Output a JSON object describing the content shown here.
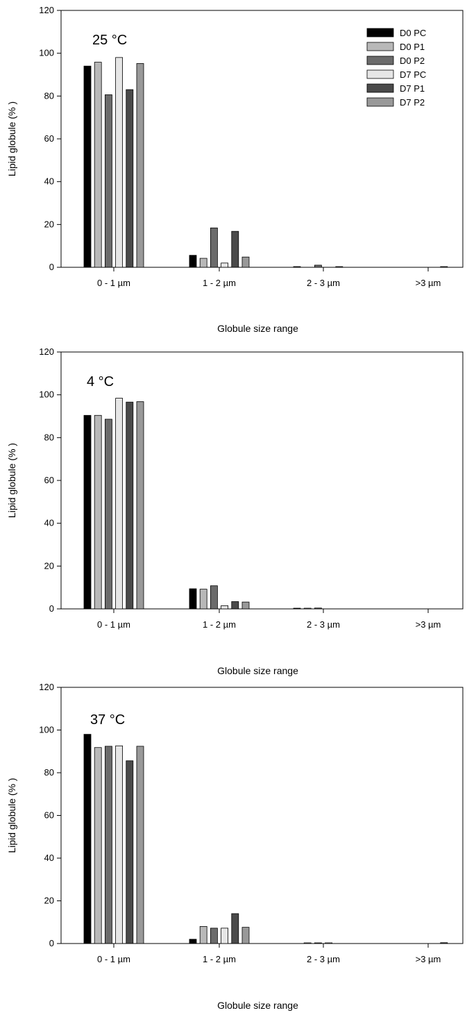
{
  "chart_data": [
    {
      "type": "bar",
      "title": "25 °C",
      "xlabel": "Globule size range",
      "ylabel": "Lipid globule (% )",
      "ylim": [
        0,
        120
      ],
      "yticks": [
        0,
        20,
        40,
        60,
        80,
        100,
        120
      ],
      "grid": false,
      "legend": "top-right",
      "categories": [
        "0 - 1 µm",
        "1 - 2 µm",
        "2 - 3 µm",
        ">3 µm"
      ],
      "series": [
        {
          "name": "D0 PC",
          "color": "#000000",
          "values": [
            94,
            5.6,
            0.2,
            0
          ]
        },
        {
          "name": "D0 P1",
          "color": "#b8b8b8",
          "values": [
            95.8,
            4.2,
            0,
            0
          ]
        },
        {
          "name": "D0 P2",
          "color": "#6b6b6b",
          "values": [
            80.6,
            18.4,
            1.0,
            0
          ]
        },
        {
          "name": "D7 PC",
          "color": "#e6e6e6",
          "values": [
            98,
            2.0,
            0,
            0
          ]
        },
        {
          "name": "D7 P1",
          "color": "#4a4a4a",
          "values": [
            83,
            16.8,
            0.2,
            0.2
          ]
        },
        {
          "name": "D7 P2",
          "color": "#999999",
          "values": [
            95.2,
            4.8,
            0,
            0
          ]
        }
      ]
    },
    {
      "type": "bar",
      "title": "4 °C",
      "xlabel": "Globule size range",
      "ylabel": "Lipid globule (% )",
      "ylim": [
        0,
        120
      ],
      "yticks": [
        0,
        20,
        40,
        60,
        80,
        100,
        120
      ],
      "grid": false,
      "categories": [
        "0 - 1 µm",
        "1 - 2 µm",
        "2 - 3 µm",
        ">3 µm"
      ],
      "series": [
        {
          "name": "D0 PC",
          "color": "#000000",
          "values": [
            90.4,
            9.4,
            0.3,
            0
          ]
        },
        {
          "name": "D0 P1",
          "color": "#b8b8b8",
          "values": [
            90.4,
            9.2,
            0.3,
            0
          ]
        },
        {
          "name": "D0 P2",
          "color": "#6b6b6b",
          "values": [
            88.6,
            10.8,
            0.4,
            0
          ]
        },
        {
          "name": "D7 PC",
          "color": "#e6e6e6",
          "values": [
            98.4,
            1.5,
            0,
            0
          ]
        },
        {
          "name": "D7 P1",
          "color": "#4a4a4a",
          "values": [
            96.6,
            3.4,
            0,
            0
          ]
        },
        {
          "name": "D7 P2",
          "color": "#999999",
          "values": [
            96.8,
            3.2,
            0,
            0
          ]
        }
      ]
    },
    {
      "type": "bar",
      "title": "37 °C",
      "xlabel": "Globule size range",
      "ylabel": "Lipid globule (% )",
      "ylim": [
        0,
        120
      ],
      "yticks": [
        0,
        20,
        40,
        60,
        80,
        100,
        120
      ],
      "grid": false,
      "categories": [
        "0 - 1 µm",
        "1 - 2 µm",
        "2 - 3 µm",
        ">3 µm"
      ],
      "series": [
        {
          "name": "D0 PC",
          "color": "#000000",
          "values": [
            98,
            2.0,
            0,
            0
          ]
        },
        {
          "name": "D0 P1",
          "color": "#b8b8b8",
          "values": [
            91.8,
            8.0,
            0.2,
            0
          ]
        },
        {
          "name": "D0 P2",
          "color": "#6b6b6b",
          "values": [
            92.4,
            7.2,
            0.3,
            0
          ]
        },
        {
          "name": "D7 PC",
          "color": "#e6e6e6",
          "values": [
            92.6,
            7.2,
            0.2,
            0
          ]
        },
        {
          "name": "D7 P1",
          "color": "#4a4a4a",
          "values": [
            85.6,
            14.0,
            0,
            0.4
          ]
        },
        {
          "name": "D7 P2",
          "color": "#999999",
          "values": [
            92.4,
            7.6,
            0,
            0
          ]
        }
      ]
    }
  ]
}
